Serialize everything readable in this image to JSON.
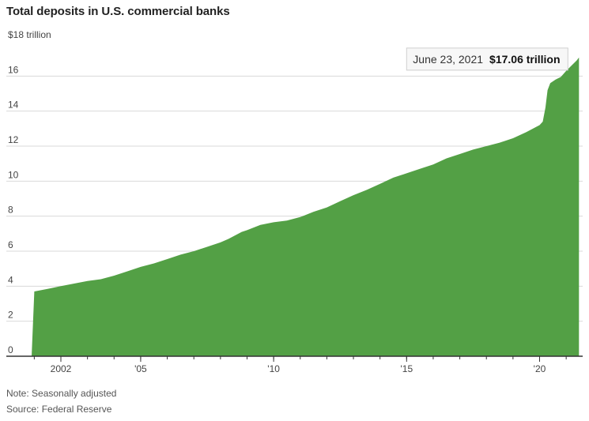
{
  "header": {
    "title": "Total deposits in U.S. commercial banks"
  },
  "footer": {
    "note": "Note: Seasonally adjusted",
    "source": "Source: Federal Reserve"
  },
  "colors": {
    "area": "#53a045",
    "grid": "#d9d9d9",
    "axis": "#333333"
  },
  "chart_data": {
    "type": "area",
    "y_unit_label": "$18 trillion",
    "ylim": [
      0,
      18
    ],
    "xlim": [
      2000.9,
      2021.62
    ],
    "y_ticks": [
      0,
      2,
      4,
      6,
      8,
      10,
      12,
      14,
      16
    ],
    "x_ticks": [
      {
        "value": 2002,
        "label": "2002"
      },
      {
        "value": 2005,
        "label": "'05"
      },
      {
        "value": 2010,
        "label": "'10"
      },
      {
        "value": 2015,
        "label": "'15"
      },
      {
        "value": 2020,
        "label": "'20"
      }
    ],
    "grid": true,
    "annotation": {
      "date": "June 23, 2021",
      "value_label": "$17.06 trillion",
      "x": 2021.48,
      "y": 17.06
    },
    "series": [
      {
        "points": [
          [
            2001.0,
            3.7
          ],
          [
            2001.5,
            3.85
          ],
          [
            2002.0,
            4.0
          ],
          [
            2002.5,
            4.15
          ],
          [
            2003.0,
            4.3
          ],
          [
            2003.5,
            4.4
          ],
          [
            2004.0,
            4.6
          ],
          [
            2004.5,
            4.85
          ],
          [
            2005.0,
            5.1
          ],
          [
            2005.5,
            5.3
          ],
          [
            2006.0,
            5.55
          ],
          [
            2006.5,
            5.8
          ],
          [
            2007.0,
            6.0
          ],
          [
            2007.5,
            6.25
          ],
          [
            2008.0,
            6.5
          ],
          [
            2008.3,
            6.7
          ],
          [
            2008.8,
            7.1
          ],
          [
            2009.0,
            7.2
          ],
          [
            2009.5,
            7.5
          ],
          [
            2010.0,
            7.65
          ],
          [
            2010.5,
            7.75
          ],
          [
            2011.0,
            7.95
          ],
          [
            2011.5,
            8.25
          ],
          [
            2012.0,
            8.5
          ],
          [
            2012.5,
            8.85
          ],
          [
            2013.0,
            9.2
          ],
          [
            2013.5,
            9.5
          ],
          [
            2014.0,
            9.85
          ],
          [
            2014.5,
            10.2
          ],
          [
            2015.0,
            10.45
          ],
          [
            2015.5,
            10.7
          ],
          [
            2016.0,
            10.95
          ],
          [
            2016.5,
            11.3
          ],
          [
            2017.0,
            11.55
          ],
          [
            2017.5,
            11.8
          ],
          [
            2018.0,
            12.0
          ],
          [
            2018.5,
            12.2
          ],
          [
            2019.0,
            12.45
          ],
          [
            2019.5,
            12.8
          ],
          [
            2020.0,
            13.2
          ],
          [
            2020.12,
            13.4
          ],
          [
            2020.22,
            14.2
          ],
          [
            2020.3,
            15.2
          ],
          [
            2020.4,
            15.6
          ],
          [
            2020.6,
            15.8
          ],
          [
            2020.8,
            15.95
          ],
          [
            2021.0,
            16.3
          ],
          [
            2021.2,
            16.6
          ],
          [
            2021.4,
            16.9
          ],
          [
            2021.48,
            17.06
          ]
        ]
      }
    ]
  }
}
